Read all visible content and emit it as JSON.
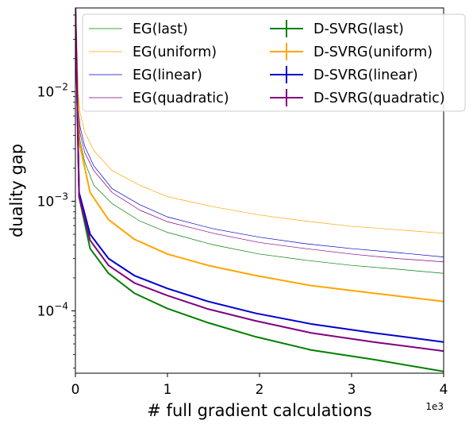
{
  "chart_data": {
    "type": "line",
    "xlabel": "# full gradient calculations",
    "ylabel": "duality gap",
    "x_offset_label": "1e3",
    "x_scale": "linear",
    "y_scale": "log",
    "xlim": [
      0,
      4000
    ],
    "ylim": [
      2.7e-05,
      0.058
    ],
    "grid": false,
    "legend": "top-right, two columns",
    "x_ticks": [
      {
        "value": 0,
        "label": "0"
      },
      {
        "value": 1000,
        "label": "1"
      },
      {
        "value": 2000,
        "label": "2"
      },
      {
        "value": 3000,
        "label": "3"
      },
      {
        "value": 4000,
        "label": "4"
      }
    ],
    "y_ticks": [
      {
        "value": 0.0001,
        "base": "10",
        "exp": "−4"
      },
      {
        "value": 0.001,
        "base": "10",
        "exp": "−3"
      },
      {
        "value": 0.01,
        "base": "10",
        "exp": "−2"
      }
    ],
    "series": [
      {
        "name": "EG(last)",
        "color": "#008000",
        "style": "thin",
        "x": [
          0,
          20,
          50,
          100,
          200,
          400,
          700,
          1000,
          1500,
          2000,
          2500,
          3000,
          3500,
          4000
        ],
        "y": [
          0.06,
          0.008,
          0.0036,
          0.0023,
          0.0014,
          0.00095,
          0.00066,
          0.00052,
          0.0004,
          0.00033,
          0.00029,
          0.00026,
          0.00024,
          0.00022
        ]
      },
      {
        "name": "EG(uniform)",
        "color": "#ffa500",
        "style": "thin",
        "x": [
          0,
          20,
          50,
          100,
          200,
          400,
          700,
          1000,
          1500,
          2000,
          2500,
          3000,
          3500,
          4000
        ],
        "y": [
          0.06,
          0.012,
          0.0065,
          0.0043,
          0.0029,
          0.0019,
          0.0014,
          0.0011,
          0.00089,
          0.00075,
          0.00066,
          0.00059,
          0.00055,
          0.00051
        ]
      },
      {
        "name": "EG(linear)",
        "color": "#0000cd",
        "style": "thin",
        "x": [
          0,
          20,
          50,
          100,
          200,
          400,
          700,
          1000,
          1500,
          2000,
          2500,
          3000,
          3500,
          4000
        ],
        "y": [
          0.06,
          0.01,
          0.0048,
          0.0032,
          0.0021,
          0.0013,
          0.00093,
          0.00072,
          0.00056,
          0.00047,
          0.00041,
          0.00037,
          0.00034,
          0.00031
        ]
      },
      {
        "name": "EG(quadratic)",
        "color": "#800080",
        "style": "thin",
        "x": [
          0,
          20,
          50,
          100,
          200,
          400,
          700,
          1000,
          1500,
          2000,
          2500,
          3000,
          3500,
          4000
        ],
        "y": [
          0.06,
          0.009,
          0.0042,
          0.0028,
          0.0019,
          0.0012,
          0.00083,
          0.00065,
          0.00051,
          0.00042,
          0.00037,
          0.00033,
          0.0003,
          0.00028
        ]
      },
      {
        "name": "D-SVRG(last)",
        "color": "#008000",
        "style": "thick",
        "x": [
          0,
          40,
          160,
          360,
          640,
          1000,
          1440,
          1960,
          2560,
          3240,
          4000
        ],
        "y": [
          0.06,
          0.0011,
          0.00037,
          0.00022,
          0.000145,
          0.000105,
          7.8e-05,
          5.8e-05,
          4.4e-05,
          3.6e-05,
          2.8e-05
        ]
      },
      {
        "name": "D-SVRG(uniform)",
        "color": "#ffa500",
        "style": "thick",
        "x": [
          0,
          40,
          160,
          360,
          640,
          1000,
          1440,
          1960,
          2560,
          3240,
          4000
        ],
        "y": [
          0.06,
          0.0035,
          0.0012,
          0.00068,
          0.00045,
          0.00033,
          0.00026,
          0.00021,
          0.00017,
          0.000145,
          0.000122
        ]
      },
      {
        "name": "D-SVRG(linear)",
        "color": "#0000cd",
        "style": "thick",
        "x": [
          0,
          40,
          160,
          360,
          640,
          1000,
          1440,
          1960,
          2560,
          3240,
          4000
        ],
        "y": [
          0.06,
          0.0012,
          0.0005,
          0.0003,
          0.00021,
          0.00016,
          0.000122,
          9.5e-05,
          7.6e-05,
          6.3e-05,
          5.2e-05
        ]
      },
      {
        "name": "D-SVRG(quadratic)",
        "color": "#800080",
        "style": "thick",
        "x": [
          0,
          40,
          160,
          360,
          640,
          1000,
          1440,
          1960,
          2560,
          3240,
          4000
        ],
        "y": [
          0.06,
          0.0011,
          0.00044,
          0.00026,
          0.00018,
          0.000138,
          0.000104,
          8.1e-05,
          6.3e-05,
          5.2e-05,
          4.3e-05
        ]
      }
    ]
  }
}
